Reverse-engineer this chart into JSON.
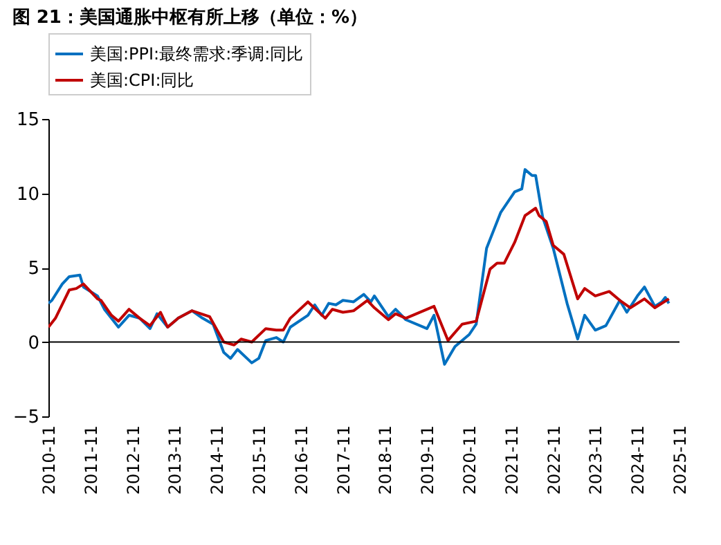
{
  "chart_data": {
    "type": "line",
    "title": "图 21：美国通胀中枢有所上移（单位：%）",
    "xlim": [
      "2010-11",
      "2025-11"
    ],
    "xticks": [
      "2010-11",
      "2011-11",
      "2012-11",
      "2013-11",
      "2014-11",
      "2015-11",
      "2016-11",
      "2017-11",
      "2018-11",
      "2019-11",
      "2020-11",
      "2021-11",
      "2022-11",
      "2023-11",
      "2024-11",
      "2025-11"
    ],
    "ylim": [
      -5,
      15
    ],
    "yticks": [
      -5,
      0,
      5,
      10,
      15
    ],
    "grid": false,
    "legend": "top",
    "marker": "none",
    "line_style": "solid",
    "ref_lines": [
      {
        "axis": "y",
        "value": 0,
        "color": "#000000"
      }
    ],
    "series": [
      {
        "name": "美国:PPI:最终需求:季调:同比",
        "color": "#0070c0",
        "x": [
          "2010-11",
          "2010-12",
          "2011-03",
          "2011-05",
          "2011-08",
          "2011-09",
          "2012-01",
          "2012-03",
          "2012-07",
          "2012-10",
          "2013-01",
          "2013-04",
          "2013-06",
          "2013-09",
          "2013-12",
          "2014-04",
          "2014-07",
          "2014-10",
          "2015-01",
          "2015-03",
          "2015-05",
          "2015-09",
          "2015-11",
          "2016-01",
          "2016-04",
          "2016-06",
          "2016-08",
          "2017-01",
          "2017-03",
          "2017-05",
          "2017-07",
          "2017-09",
          "2017-11",
          "2018-02",
          "2018-05",
          "2018-07",
          "2018-08",
          "2018-12",
          "2019-02",
          "2019-05",
          "2019-11",
          "2020-01",
          "2020-04",
          "2020-07",
          "2020-11",
          "2021-01",
          "2021-04",
          "2021-08",
          "2021-12",
          "2022-02",
          "2022-03",
          "2022-05",
          "2022-06",
          "2022-08",
          "2022-11",
          "2023-03",
          "2023-06",
          "2023-08",
          "2023-11",
          "2024-02",
          "2024-06",
          "2024-08",
          "2024-11",
          "2025-01",
          "2025-04",
          "2025-06",
          "2025-07",
          "2025-08"
        ],
        "values": [
          2.6,
          2.8,
          3.9,
          4.4,
          4.5,
          3.7,
          3.1,
          2.2,
          1.0,
          1.8,
          1.6,
          0.9,
          1.9,
          1.0,
          1.6,
          2.1,
          1.6,
          1.2,
          -0.7,
          -1.1,
          -0.5,
          -1.4,
          -1.1,
          0.1,
          0.3,
          0.0,
          1.0,
          1.8,
          2.5,
          1.8,
          2.6,
          2.5,
          2.8,
          2.7,
          3.2,
          2.7,
          3.1,
          1.7,
          2.2,
          1.5,
          0.9,
          1.8,
          -1.5,
          -0.3,
          0.5,
          1.2,
          6.3,
          8.7,
          10.1,
          10.3,
          11.6,
          11.2,
          11.2,
          8.4,
          6.3,
          2.6,
          0.2,
          1.8,
          0.8,
          1.1,
          2.8,
          2.0,
          3.1,
          3.7,
          2.4,
          2.7,
          3.0,
          2.6
        ]
      },
      {
        "name": "美国:CPI:同比",
        "color": "#c00000",
        "x": [
          "2010-11",
          "2011-01",
          "2011-05",
          "2011-07",
          "2011-09",
          "2012-01",
          "2012-02",
          "2012-05",
          "2012-07",
          "2012-10",
          "2013-01",
          "2013-04",
          "2013-07",
          "2013-09",
          "2013-12",
          "2014-04",
          "2014-09",
          "2015-01",
          "2015-04",
          "2015-06",
          "2015-09",
          "2016-01",
          "2016-04",
          "2016-06",
          "2016-08",
          "2017-01",
          "2017-06",
          "2017-08",
          "2017-11",
          "2018-02",
          "2018-06",
          "2018-08",
          "2018-12",
          "2019-02",
          "2019-05",
          "2020-01",
          "2020-05",
          "2020-09",
          "2021-01",
          "2021-05",
          "2021-07",
          "2021-09",
          "2021-12",
          "2022-03",
          "2022-06",
          "2022-07",
          "2022-09",
          "2022-11",
          "2023-02",
          "2023-06",
          "2023-08",
          "2023-11",
          "2024-03",
          "2024-06",
          "2024-09",
          "2025-01",
          "2025-04",
          "2025-08"
        ],
        "values": [
          1.0,
          1.6,
          3.5,
          3.6,
          3.9,
          2.9,
          2.8,
          1.8,
          1.4,
          2.2,
          1.6,
          1.1,
          2.0,
          1.0,
          1.6,
          2.1,
          1.7,
          0.0,
          -0.2,
          0.2,
          0.0,
          0.9,
          0.8,
          0.8,
          1.6,
          2.7,
          1.6,
          2.2,
          2.0,
          2.1,
          2.8,
          2.3,
          1.5,
          1.9,
          1.6,
          2.4,
          0.1,
          1.2,
          1.4,
          4.9,
          5.3,
          5.3,
          6.7,
          8.5,
          9.0,
          8.5,
          8.1,
          6.5,
          5.9,
          2.9,
          3.6,
          3.1,
          3.4,
          2.8,
          2.3,
          2.9,
          2.3,
          2.9
        ]
      }
    ]
  }
}
